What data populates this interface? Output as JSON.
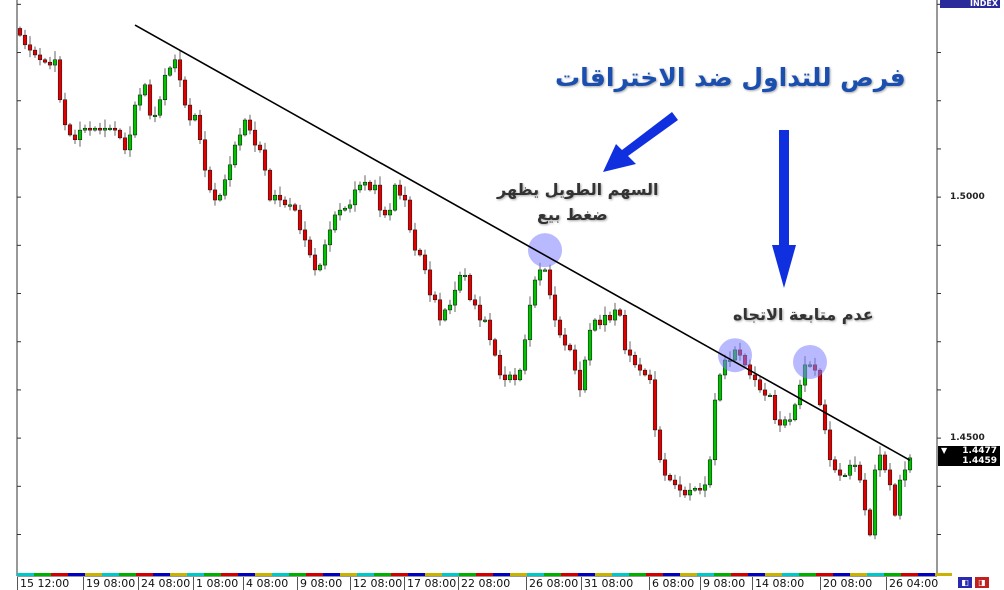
{
  "chart_data": {
    "type": "candlestick",
    "title": "فرص للتداول ضد الاختراقات",
    "ylim": [
      1.4216,
      1.5409
    ],
    "y_ticks": [
      "1.5000",
      "1.4500"
    ],
    "x_ticks": [
      "15 12:00",
      "19 08:00",
      "24 08:00",
      "1 08:00",
      "4 08:00",
      "9 08:00",
      "12 08:00",
      "17 08:00",
      "22 08:00",
      "26 08:00",
      "31 08:00",
      "6 08:00",
      "9 08:00",
      "14 08:00",
      "20 08:00",
      "26 04:00"
    ],
    "colors": {
      "bull": "#00c000",
      "bear": "#e00000",
      "trendline": "#000000",
      "highlight": "#8080ff",
      "arrow": "#1030e0"
    },
    "open_first": 1.535,
    "close": [
      1.5336,
      1.5316,
      1.5305,
      1.5295,
      1.5285,
      1.528,
      1.5274,
      1.5285,
      1.5202,
      1.515,
      1.5129,
      1.5119,
      1.5139,
      1.5143,
      1.5139,
      1.5143,
      1.5139,
      1.5143,
      1.5143,
      1.5139,
      1.5123,
      1.5098,
      1.5129,
      1.5191,
      1.5212,
      1.5233,
      1.517,
      1.517,
      1.5202,
      1.5253,
      1.5268,
      1.5285,
      1.5243,
      1.5191,
      1.516,
      1.517,
      1.5119,
      1.5056,
      1.5015,
      1.4994,
      1.5004,
      1.5036,
      1.5067,
      1.5108,
      1.5129,
      1.516,
      1.5139,
      1.5108,
      1.5098,
      1.5056,
      1.4994,
      1.5004,
      1.4994,
      1.4984,
      1.4984,
      1.4973,
      1.4932,
      1.4911,
      1.488,
      1.4849,
      1.4859,
      1.4901,
      1.4932,
      1.4963,
      1.4973,
      1.4977,
      1.4984,
      1.5015,
      1.5025,
      1.5031,
      1.5015,
      1.5025,
      1.4973,
      1.4963,
      1.4973,
      1.5025,
      1.5004,
      1.4994,
      1.4932,
      1.489,
      1.488,
      1.4849,
      1.4797,
      1.4787,
      1.4745,
      1.4766,
      1.4776,
      1.4807,
      1.4838,
      1.4838,
      1.4787,
      1.4776,
      1.4745,
      1.4745,
      1.4704,
      1.4672,
      1.4631,
      1.4621,
      1.4631,
      1.4621,
      1.4641,
      1.4704,
      1.4776,
      1.4828,
      1.4849,
      1.4849,
      1.4797,
      1.4745,
      1.4714,
      1.4693,
      1.4683,
      1.4641,
      1.46,
      1.4662,
      1.4724,
      1.4745,
      1.4735,
      1.4755,
      1.4745,
      1.4766,
      1.4755,
      1.4683,
      1.4672,
      1.4652,
      1.4641,
      1.4631,
      1.4621,
      1.4517,
      1.4455,
      1.4423,
      1.4413,
      1.4403,
      1.4392,
      1.4382,
      1.4392,
      1.4396,
      1.4392,
      1.4403,
      1.4455,
      1.4579,
      1.4631,
      1.4662,
      1.4662,
      1.4683,
      1.4672,
      1.4652,
      1.4631,
      1.4621,
      1.46,
      1.4589,
      1.4589,
      1.4538,
      1.4527,
      1.4538,
      1.4538,
      1.4569,
      1.461,
      1.4652,
      1.4652,
      1.4641,
      1.4569,
      1.4517,
      1.4455,
      1.4434,
      1.4423,
      1.4423,
      1.4444,
      1.4444,
      1.4413,
      1.4351,
      1.4299,
      1.4434,
      1.4465,
      1.4434,
      1.4403,
      1.434,
      1.4413,
      1.4434,
      1.4459
    ],
    "trendline": {
      "start": {
        "index": 23,
        "price": 1.5357
      },
      "end": {
        "index": 178,
        "price": 1.4454
      }
    },
    "highlights": [
      {
        "index": 105,
        "price": 1.489
      },
      {
        "index": 143,
        "price": 1.4672
      },
      {
        "index": 158,
        "price": 1.4658
      }
    ],
    "annotations": {
      "title": "فرص للتداول ضد الاختراقات",
      "note1_line1": "السهم الطويل يظهر",
      "note1_line2": "ضغط بيع",
      "note2": "عدم متابعة الاتجاه"
    },
    "current_price": {
      "ask": "1.4477",
      "bid": "1.4459"
    },
    "indicator_label": "INDEX"
  }
}
